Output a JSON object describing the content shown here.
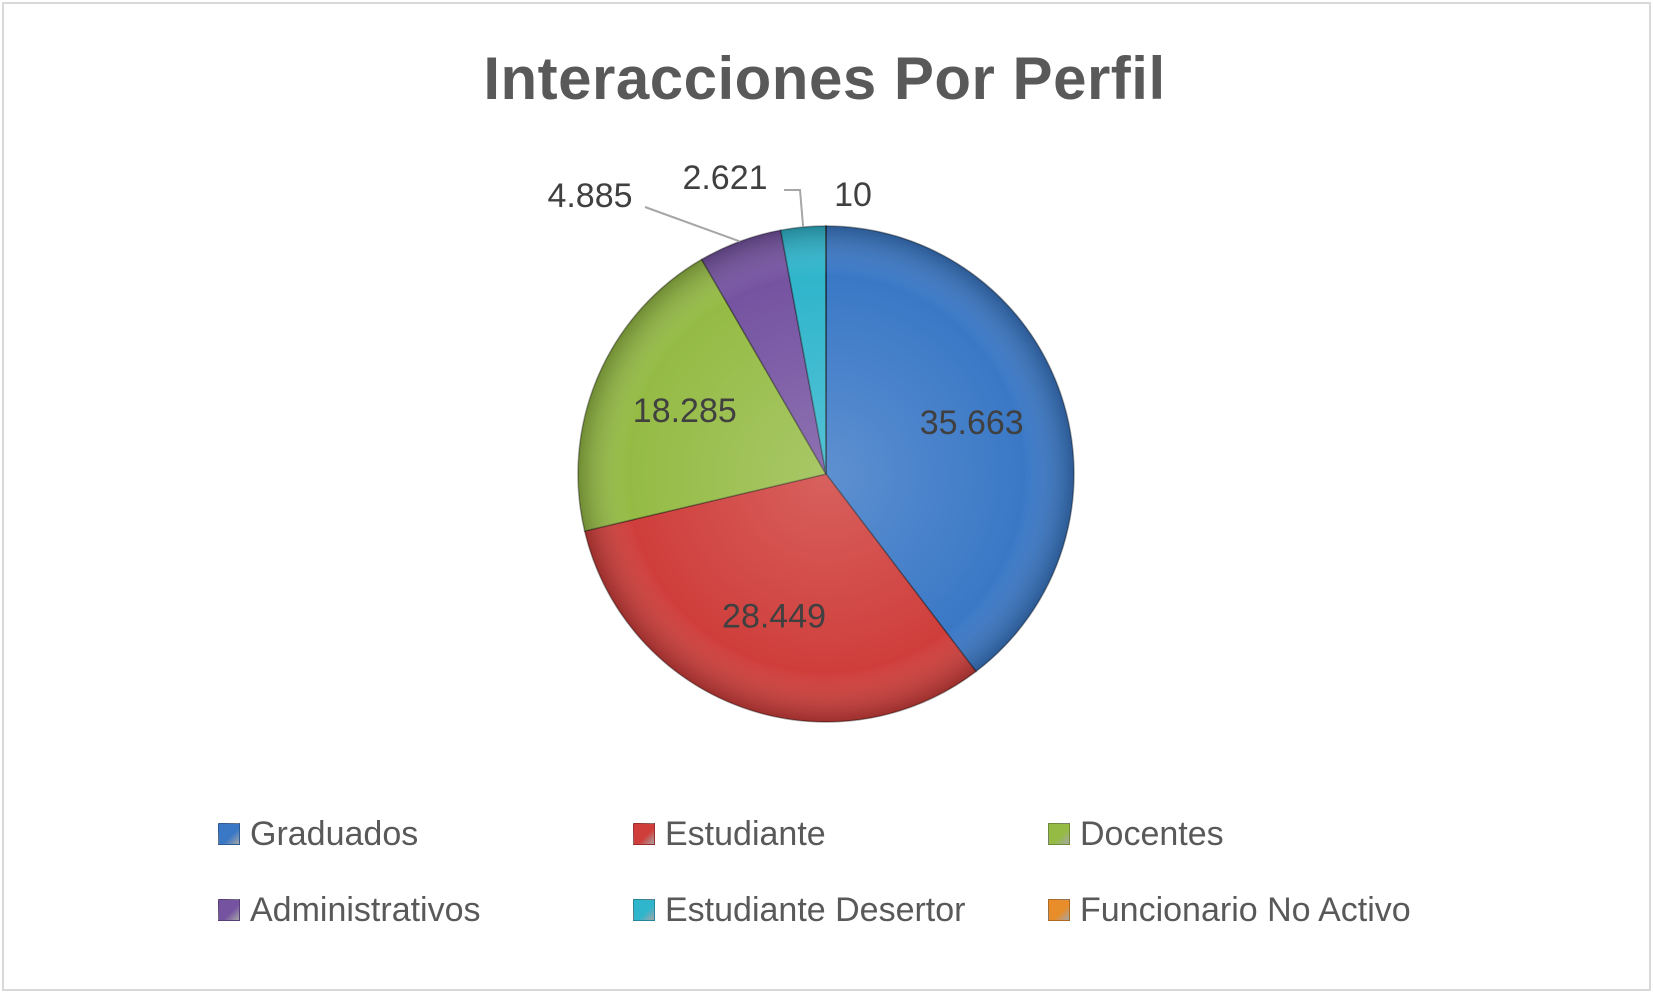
{
  "chart_data": {
    "type": "pie",
    "title": "Interacciones Por Perfil",
    "categories": [
      "Graduados",
      "Estudiante",
      "Docentes",
      "Administrativos",
      "Estudiante Desertor",
      "Funcionario No Activo"
    ],
    "values": [
      35663,
      28449,
      18285,
      4885,
      2621,
      10
    ],
    "data_labels": [
      "35.663",
      "28.449",
      "18.285",
      "4.885",
      "2.621",
      "10"
    ],
    "colors": [
      "#3a78c6",
      "#cf3e3b",
      "#95bb45",
      "#7553a1",
      "#2fb5cc",
      "#e88d2a"
    ],
    "legend_position": "bottom"
  }
}
